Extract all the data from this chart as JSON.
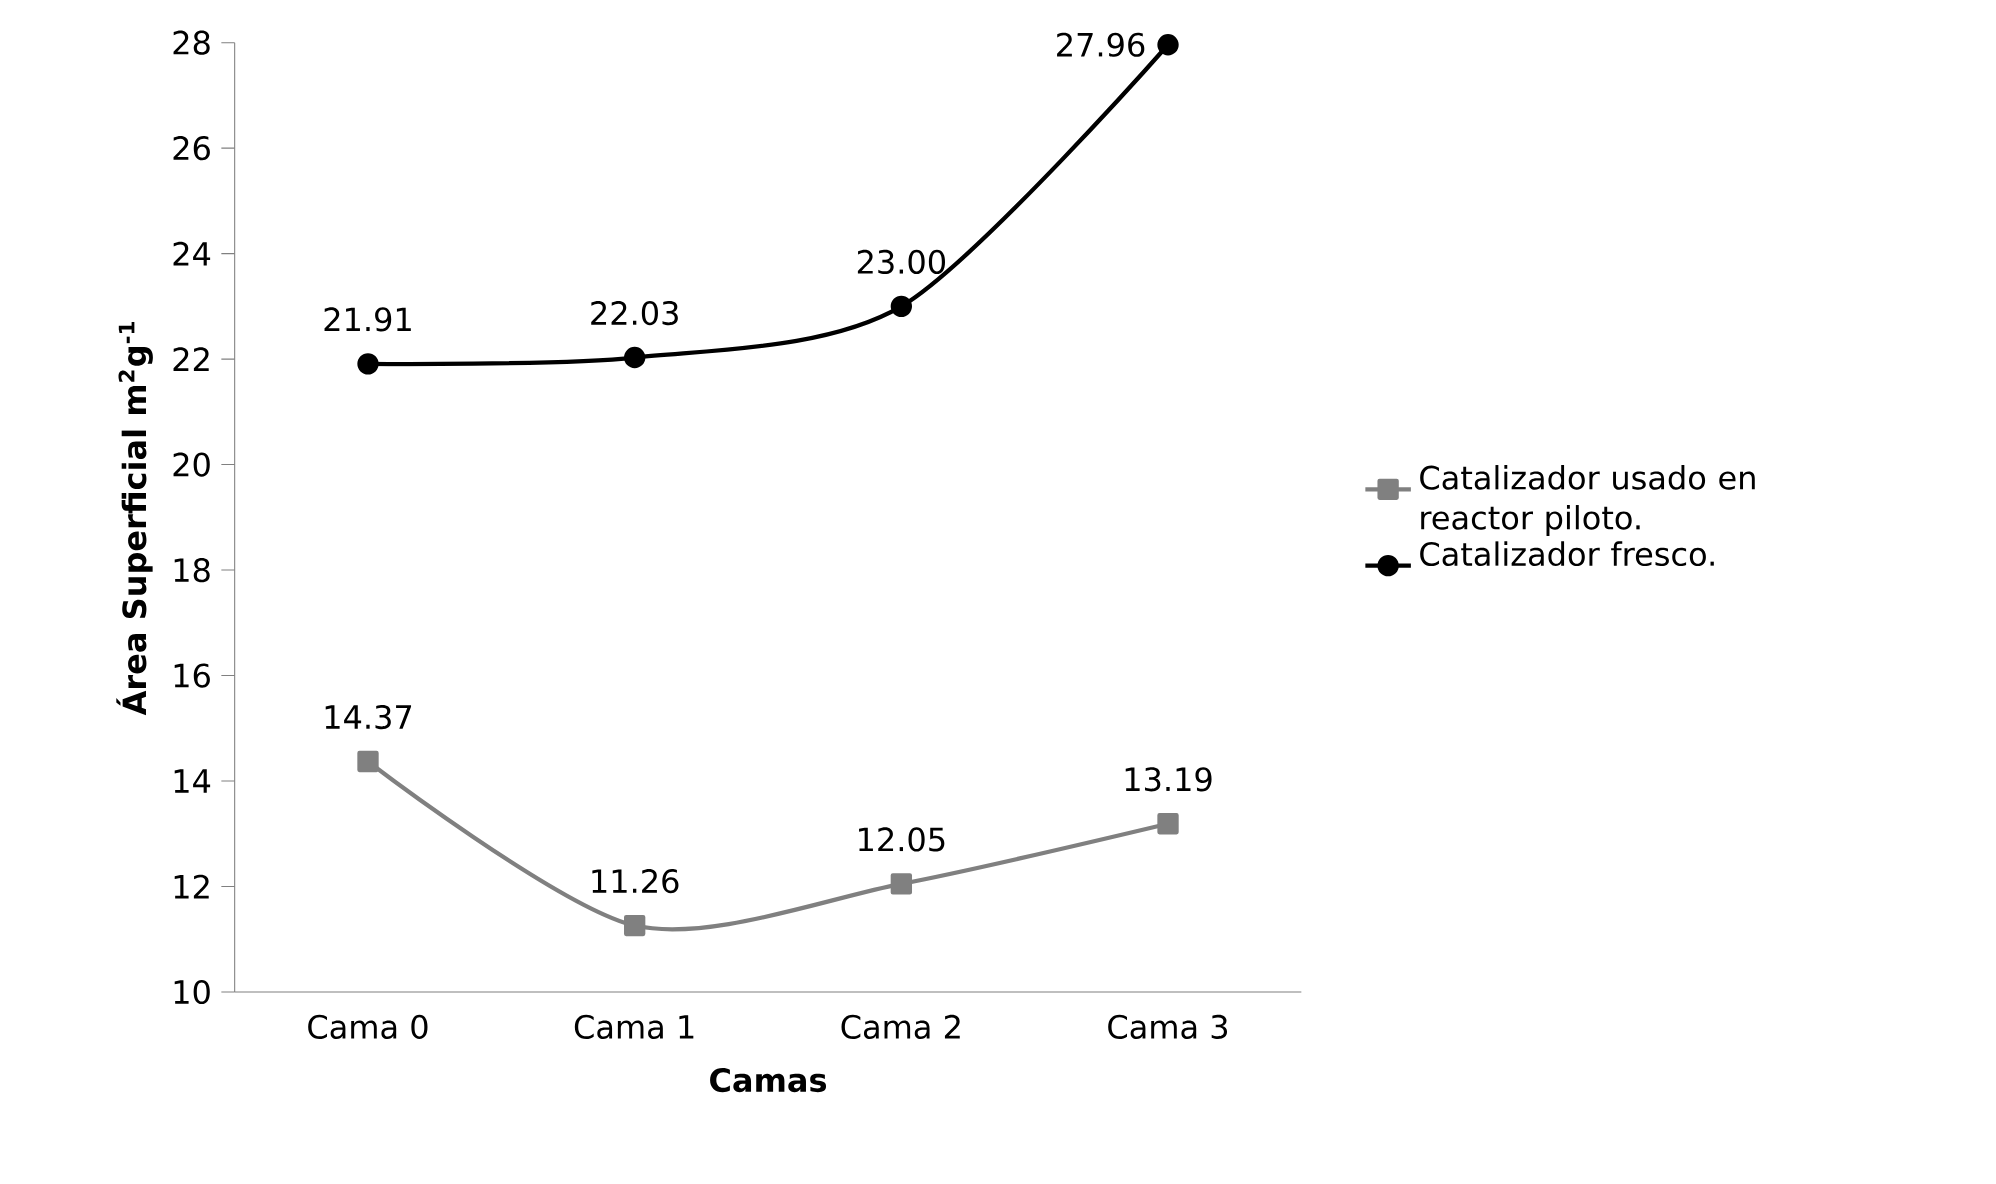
{
  "chart_data": {
    "type": "line",
    "xlabel": "Camas",
    "ylabel": "Área Superficial m$^{2}$g$^{-1}$",
    "categories": [
      "Cama 0",
      "Cama 1",
      "Cama 2",
      "Cama 3"
    ],
    "series": [
      {
        "name": "Catalizador usado en reactor piloto.",
        "color": "#808080",
        "marker": "square",
        "values": [
          14.37,
          11.26,
          12.05,
          13.19
        ],
        "value_labels": [
          "14.37",
          "11.26",
          "12.05",
          "13.19"
        ]
      },
      {
        "name": "Catalizador fresco.",
        "color": "#000000",
        "marker": "circle",
        "values": [
          21.91,
          22.03,
          23.0,
          27.96
        ],
        "value_labels": [
          "21.91",
          "22.03",
          "23.00",
          "27.96"
        ]
      }
    ],
    "ylim": [
      10,
      28
    ],
    "yticks": [
      10,
      12,
      14,
      16,
      18,
      20,
      22,
      24,
      26,
      28
    ],
    "legend": "right",
    "grid": false,
    "line_style": "solid"
  }
}
